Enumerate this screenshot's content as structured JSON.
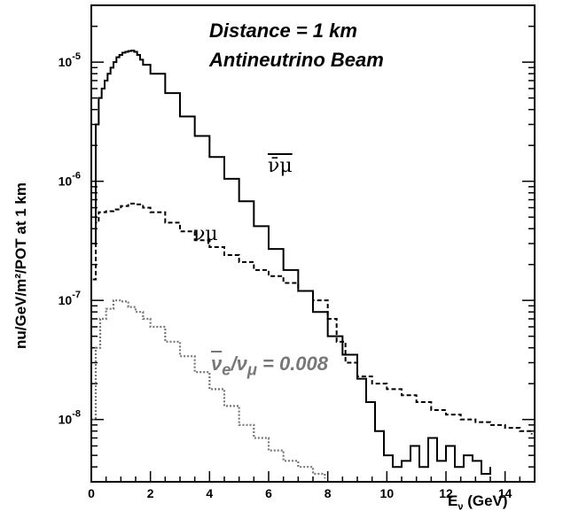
{
  "chart_data": {
    "type": "line",
    "title_lines": [
      "Distance = 1 km",
      "Antineutrino Beam"
    ],
    "ylabel": "nu/GeV/m²/POT at 1 km",
    "xlabel": "E",
    "xlabel_sub": "ν",
    "xlabel_unit": " (GeV)",
    "xlim": [
      0,
      15
    ],
    "ylim": [
      3e-09,
      3e-05
    ],
    "yscale": "log",
    "x_ticks": [
      "0",
      "2",
      "4",
      "6",
      "8",
      "10",
      "12",
      "14"
    ],
    "y_ticks": [
      {
        "base": "10",
        "exp": "-5",
        "value": 1e-05
      },
      {
        "base": "10",
        "exp": "-6",
        "value": 1e-06
      },
      {
        "base": "10",
        "exp": "-7",
        "value": 1e-07
      },
      {
        "base": "10",
        "exp": "-8",
        "value": 1e-08
      }
    ],
    "series": [
      {
        "label": "ν̄μ",
        "style": "solid",
        "x": [
          0.05,
          0.15,
          0.25,
          0.35,
          0.45,
          0.55,
          0.65,
          0.75,
          0.85,
          0.95,
          1.05,
          1.15,
          1.25,
          1.35,
          1.45,
          1.55,
          1.65,
          1.75,
          2.0,
          2.5,
          3.0,
          3.5,
          4.0,
          4.5,
          5.0,
          5.5,
          6.0,
          6.5,
          7.0,
          7.5,
          8.0,
          8.5,
          9.0,
          9.3,
          9.6,
          9.9,
          10.2,
          10.5,
          10.8,
          11.1,
          11.4,
          11.7,
          12.0,
          12.3,
          12.6,
          12.9,
          13.2,
          13.5
        ],
        "y": [
          3e-07,
          3e-06,
          5e-06,
          6e-06,
          7e-06,
          8e-06,
          9e-06,
          1e-05,
          1.1e-05,
          1.15e-05,
          1.2e-05,
          1.22e-05,
          1.24e-05,
          1.25e-05,
          1.22e-05,
          1.15e-05,
          1.05e-05,
          9.5e-06,
          8e-06,
          5.5e-06,
          3.5e-06,
          2.4e-06,
          1.6e-06,
          1.05e-06,
          6.8e-07,
          4.2e-07,
          2.7e-07,
          1.8e-07,
          1.2e-07,
          8e-08,
          5e-08,
          3.5e-08,
          2.2e-08,
          1.4e-08,
          8e-09,
          5e-09,
          4e-09,
          4.5e-09,
          6e-09,
          4e-09,
          7e-09,
          4.5e-09,
          6e-09,
          4e-09,
          5e-09,
          4.5e-09,
          3.5e-09,
          4e-09
        ]
      },
      {
        "label": "νμ",
        "style": "dashed",
        "x": [
          0.05,
          0.15,
          0.25,
          0.5,
          0.75,
          1.0,
          1.25,
          1.5,
          1.75,
          2.0,
          2.5,
          3.0,
          3.5,
          4.0,
          4.5,
          5.0,
          5.5,
          6.0,
          6.5,
          7.0,
          7.5,
          8.0,
          8.3,
          8.6,
          9.0,
          9.5,
          10.0,
          10.5,
          11.0,
          11.5,
          12.0,
          12.5,
          13.0,
          13.5,
          14.0,
          14.5,
          14.9
        ],
        "y": [
          1.5e-07,
          4.5e-07,
          5.5e-07,
          5.6e-07,
          5.8e-07,
          6.2e-07,
          6.5e-07,
          6.4e-07,
          6e-07,
          5.5e-07,
          4.5e-07,
          3.8e-07,
          3.2e-07,
          2.8e-07,
          2.4e-07,
          2.1e-07,
          1.8e-07,
          1.6e-07,
          1.4e-07,
          1.2e-07,
          1e-07,
          7e-08,
          4.5e-08,
          3e-08,
          2.3e-08,
          2e-08,
          1.8e-08,
          1.6e-08,
          1.4e-08,
          1.2e-08,
          1.1e-08,
          1e-08,
          9.5e-09,
          9e-09,
          8.5e-09,
          8e-09,
          7.5e-09
        ]
      },
      {
        "label": "ν̄e",
        "style": "dotted",
        "x": [
          0.05,
          0.15,
          0.3,
          0.5,
          0.75,
          1.0,
          1.25,
          1.5,
          1.75,
          2.0,
          2.5,
          3.0,
          3.5,
          4.0,
          4.5,
          5.0,
          5.5,
          6.0,
          6.5,
          7.0,
          7.5,
          7.9
        ],
        "y": [
          1e-08,
          4e-08,
          7e-08,
          8.5e-08,
          1e-07,
          9.8e-08,
          8.8e-08,
          8e-08,
          7e-08,
          6e-08,
          4.5e-08,
          3.4e-08,
          2.5e-08,
          1.8e-08,
          1.3e-08,
          9e-09,
          7e-09,
          5.5e-09,
          4.5e-09,
          4e-09,
          3.5e-09,
          3.2e-09
        ]
      }
    ],
    "annotation": {
      "num": "ν",
      "num_sub": "e",
      "den": "ν",
      "den_sub": "μ",
      "value": " = 0.008"
    }
  }
}
